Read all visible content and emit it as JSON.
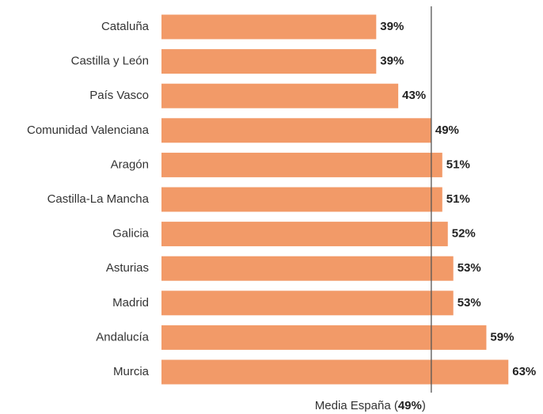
{
  "chart_data": {
    "type": "bar",
    "orientation": "horizontal",
    "categories": [
      "Cataluña",
      "Castilla y León",
      "País Vasco",
      "Comunidad Valenciana",
      "Aragón",
      "Castilla-La Mancha",
      "Galicia",
      "Asturias",
      "Madrid",
      "Andalucía",
      "Murcia"
    ],
    "values": [
      39,
      39,
      43,
      49,
      51,
      51,
      52,
      53,
      53,
      59,
      63
    ],
    "value_labels": [
      "39%",
      "39%",
      "43%",
      "49%",
      "51%",
      "51%",
      "52%",
      "53%",
      "53%",
      "59%",
      "63%"
    ],
    "color": "#f29a68",
    "xlim": [
      0,
      69
    ],
    "reference": {
      "value": 49,
      "label_start": "Media España (",
      "value_label": "49%",
      "label_end": ")"
    }
  }
}
